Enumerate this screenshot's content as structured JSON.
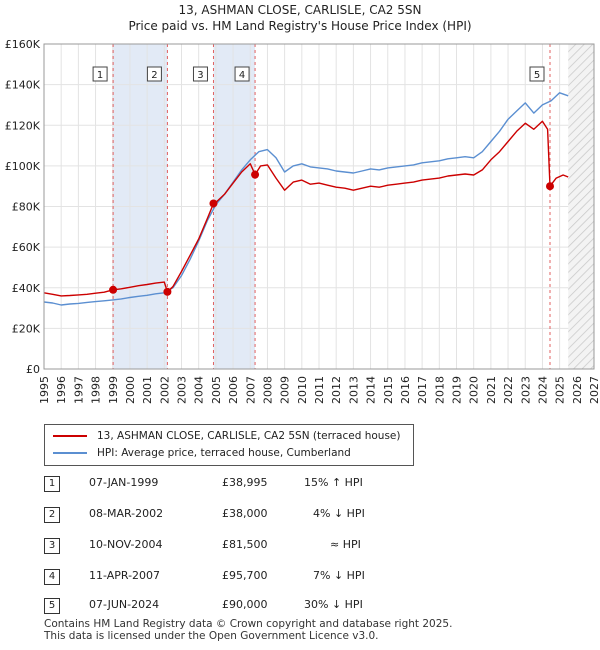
{
  "chart_data": {
    "type": "line",
    "title": "13, ASHMAN CLOSE, CARLISLE, CA2 5SN",
    "subtitle": "Price paid vs. HM Land Registry's House Price Index (HPI)",
    "xlim": [
      1995,
      2027
    ],
    "ylim": [
      0,
      160000
    ],
    "x_ticks": [
      "1995",
      "1996",
      "1997",
      "1998",
      "1999",
      "2000",
      "2001",
      "2002",
      "2003",
      "2004",
      "2005",
      "2006",
      "2007",
      "2008",
      "2009",
      "2010",
      "2011",
      "2012",
      "2013",
      "2014",
      "2015",
      "2016",
      "2017",
      "2018",
      "2019",
      "2020",
      "2021",
      "2022",
      "2023",
      "2024",
      "2025",
      "2026",
      "2027"
    ],
    "y_ticks": [
      {
        "value": 0,
        "label": "£0"
      },
      {
        "value": 20000,
        "label": "£20K"
      },
      {
        "value": 40000,
        "label": "£40K"
      },
      {
        "value": 60000,
        "label": "£60K"
      },
      {
        "value": 80000,
        "label": "£80K"
      },
      {
        "value": 100000,
        "label": "£100K"
      },
      {
        "value": 120000,
        "label": "£120K"
      },
      {
        "value": 140000,
        "label": "£140K"
      },
      {
        "value": 160000,
        "label": "£160K"
      }
    ],
    "forecast_from": 2025.5,
    "shaded_periods": [
      [
        1999.02,
        2002.18
      ],
      [
        2004.86,
        2007.28
      ]
    ],
    "series": [
      {
        "name": "13, ASHMAN CLOSE, CARLISLE, CA2 5SN (terraced house)",
        "color": "#cc0000",
        "points": [
          [
            1995.0,
            37500
          ],
          [
            1995.5,
            36800
          ],
          [
            1996.0,
            36000
          ],
          [
            1996.5,
            36200
          ],
          [
            1997.0,
            36500
          ],
          [
            1997.5,
            36800
          ],
          [
            1998.0,
            37300
          ],
          [
            1998.5,
            37800
          ],
          [
            1999.02,
            38995
          ],
          [
            1999.5,
            39500
          ],
          [
            2000.0,
            40200
          ],
          [
            2000.5,
            41000
          ],
          [
            2001.0,
            41600
          ],
          [
            2001.5,
            42300
          ],
          [
            2002.0,
            42800
          ],
          [
            2002.18,
            38000
          ],
          [
            2002.5,
            40500
          ],
          [
            2003.0,
            48000
          ],
          [
            2003.5,
            56000
          ],
          [
            2004.0,
            64000
          ],
          [
            2004.5,
            74000
          ],
          [
            2004.86,
            81500
          ],
          [
            2005.0,
            82000
          ],
          [
            2005.5,
            86000
          ],
          [
            2006.0,
            91500
          ],
          [
            2006.5,
            97000
          ],
          [
            2007.0,
            101000
          ],
          [
            2007.28,
            95700
          ],
          [
            2007.6,
            100000
          ],
          [
            2008.0,
            100500
          ],
          [
            2008.5,
            94000
          ],
          [
            2009.0,
            88000
          ],
          [
            2009.5,
            92000
          ],
          [
            2010.0,
            93000
          ],
          [
            2010.5,
            91000
          ],
          [
            2011.0,
            91500
          ],
          [
            2011.5,
            90500
          ],
          [
            2012.0,
            89500
          ],
          [
            2012.5,
            89000
          ],
          [
            2013.0,
            88000
          ],
          [
            2013.5,
            89000
          ],
          [
            2014.0,
            90000
          ],
          [
            2014.5,
            89500
          ],
          [
            2015.0,
            90500
          ],
          [
            2015.5,
            91000
          ],
          [
            2016.0,
            91500
          ],
          [
            2016.5,
            92000
          ],
          [
            2017.0,
            93000
          ],
          [
            2017.5,
            93500
          ],
          [
            2018.0,
            94000
          ],
          [
            2018.5,
            95000
          ],
          [
            2019.0,
            95500
          ],
          [
            2019.5,
            96000
          ],
          [
            2020.0,
            95500
          ],
          [
            2020.5,
            98000
          ],
          [
            2021.0,
            103000
          ],
          [
            2021.5,
            107000
          ],
          [
            2022.0,
            112000
          ],
          [
            2022.5,
            117000
          ],
          [
            2023.0,
            121000
          ],
          [
            2023.5,
            118000
          ],
          [
            2024.0,
            122000
          ],
          [
            2024.3,
            118000
          ],
          [
            2024.44,
            90000
          ],
          [
            2024.8,
            94000
          ],
          [
            2025.2,
            95500
          ],
          [
            2025.5,
            94500
          ]
        ]
      },
      {
        "name": "HPI: Average price, terraced house, Cumberland",
        "color": "#5b8fd1",
        "points": [
          [
            1995.0,
            33000
          ],
          [
            1995.5,
            32500
          ],
          [
            1996.0,
            31500
          ],
          [
            1996.5,
            32000
          ],
          [
            1997.0,
            32300
          ],
          [
            1997.5,
            32800
          ],
          [
            1998.0,
            33200
          ],
          [
            1998.5,
            33600
          ],
          [
            1999.0,
            34000
          ],
          [
            1999.5,
            34500
          ],
          [
            2000.0,
            35200
          ],
          [
            2000.5,
            35800
          ],
          [
            2001.0,
            36300
          ],
          [
            2001.5,
            37000
          ],
          [
            2002.0,
            37500
          ],
          [
            2002.5,
            40000
          ],
          [
            2003.0,
            46000
          ],
          [
            2003.5,
            54000
          ],
          [
            2004.0,
            63000
          ],
          [
            2004.5,
            73000
          ],
          [
            2005.0,
            81000
          ],
          [
            2005.5,
            86000
          ],
          [
            2006.0,
            92000
          ],
          [
            2006.5,
            98000
          ],
          [
            2007.0,
            103000
          ],
          [
            2007.5,
            107000
          ],
          [
            2008.0,
            108000
          ],
          [
            2008.5,
            104000
          ],
          [
            2009.0,
            97000
          ],
          [
            2009.5,
            100000
          ],
          [
            2010.0,
            101000
          ],
          [
            2010.5,
            99500
          ],
          [
            2011.0,
            99000
          ],
          [
            2011.5,
            98500
          ],
          [
            2012.0,
            97500
          ],
          [
            2012.5,
            97000
          ],
          [
            2013.0,
            96500
          ],
          [
            2013.5,
            97500
          ],
          [
            2014.0,
            98500
          ],
          [
            2014.5,
            98000
          ],
          [
            2015.0,
            99000
          ],
          [
            2015.5,
            99500
          ],
          [
            2016.0,
            100000
          ],
          [
            2016.5,
            100500
          ],
          [
            2017.0,
            101500
          ],
          [
            2017.5,
            102000
          ],
          [
            2018.0,
            102500
          ],
          [
            2018.5,
            103500
          ],
          [
            2019.0,
            104000
          ],
          [
            2019.5,
            104500
          ],
          [
            2020.0,
            104000
          ],
          [
            2020.5,
            107000
          ],
          [
            2021.0,
            112000
          ],
          [
            2021.5,
            117000
          ],
          [
            2022.0,
            123000
          ],
          [
            2022.5,
            127000
          ],
          [
            2023.0,
            131000
          ],
          [
            2023.5,
            126000
          ],
          [
            2024.0,
            130000
          ],
          [
            2024.5,
            132000
          ],
          [
            2025.0,
            136000
          ],
          [
            2025.5,
            134500
          ]
        ]
      }
    ],
    "sales": [
      {
        "label": "1",
        "x": 1999.02,
        "price": 38995
      },
      {
        "label": "2",
        "x": 2002.18,
        "price": 38000
      },
      {
        "label": "3",
        "x": 2004.86,
        "price": 81500
      },
      {
        "label": "4",
        "x": 2007.28,
        "price": 95700
      },
      {
        "label": "5",
        "x": 2024.44,
        "price": 90000
      }
    ]
  },
  "legend": {
    "property_label": "13, ASHMAN CLOSE, CARLISLE, CA2 5SN (terraced house)",
    "hpi_label": "HPI: Average price, terraced house, Cumberland"
  },
  "sales_table": [
    {
      "num": "1",
      "date": "07-JAN-1999",
      "price": "£38,995",
      "hpi": "15% ↑ HPI"
    },
    {
      "num": "2",
      "date": "08-MAR-2002",
      "price": "£38,000",
      "hpi": "4% ↓ HPI"
    },
    {
      "num": "3",
      "date": "10-NOV-2004",
      "price": "£81,500",
      "hpi": "≈ HPI"
    },
    {
      "num": "4",
      "date": "11-APR-2007",
      "price": "£95,700",
      "hpi": "7% ↓ HPI"
    },
    {
      "num": "5",
      "date": "07-JUN-2024",
      "price": "£90,000",
      "hpi": "30% ↓ HPI"
    }
  ],
  "footer": {
    "line1": "Contains HM Land Registry data © Crown copyright and database right 2025.",
    "line2": "This data is licensed under the Open Government Licence v3.0."
  }
}
